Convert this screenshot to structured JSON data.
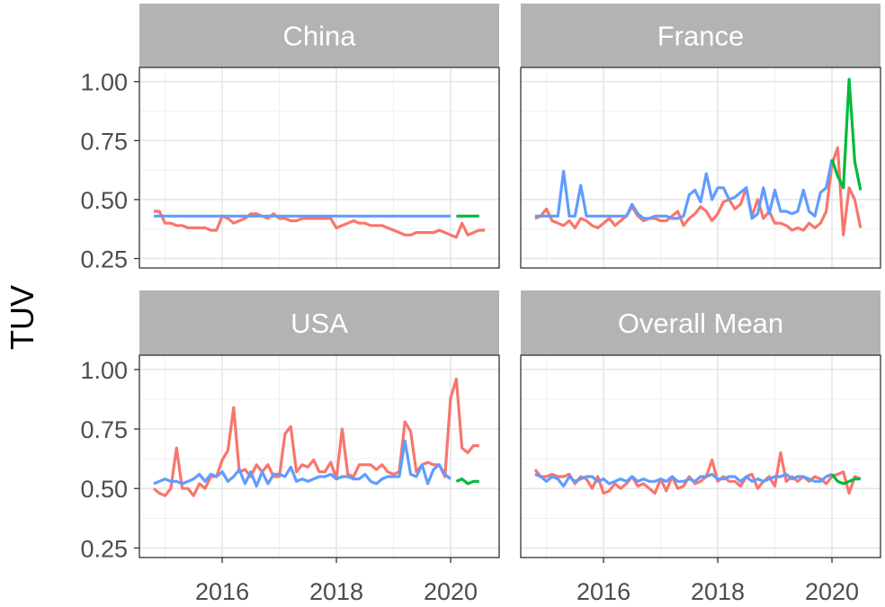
{
  "chart_data": {
    "type": "line",
    "facet_layout": "2x2",
    "ylabel": "TUV",
    "xlabel": "",
    "xlim": [
      2014.55,
      2020.85
    ],
    "ylim": [
      0.21,
      1.06
    ],
    "x_ticks": [
      2016,
      2018,
      2020
    ],
    "y_ticks": [
      0.25,
      0.5,
      0.75,
      1.0
    ],
    "x_tick_labels": [
      "2016",
      "2018",
      "2020"
    ],
    "y_tick_labels": [
      "0.25",
      "0.50",
      "0.75",
      "1.00"
    ],
    "grid": true,
    "legend": "none",
    "series_colors": {
      "red": "#F8766D",
      "blue": "#619CFF",
      "green": "#00BA38"
    },
    "panels": [
      {
        "title": "China",
        "series": [
          {
            "color": "red",
            "x": [
              2014.8,
              2014.9,
              2015.0,
              2015.1,
              2015.2,
              2015.3,
              2015.4,
              2015.5,
              2015.6,
              2015.7,
              2015.8,
              2015.9,
              2016.0,
              2016.1,
              2016.2,
              2016.3,
              2016.4,
              2016.5,
              2016.6,
              2016.7,
              2016.8,
              2016.9,
              2017.0,
              2017.1,
              2017.2,
              2017.3,
              2017.4,
              2017.5,
              2017.6,
              2017.7,
              2017.8,
              2017.9,
              2018.0,
              2018.1,
              2018.2,
              2018.3,
              2018.4,
              2018.5,
              2018.6,
              2018.7,
              2018.8,
              2018.9,
              2019.0,
              2019.1,
              2019.2,
              2019.3,
              2019.4,
              2019.5,
              2019.6,
              2019.7,
              2019.8,
              2019.9,
              2020.0,
              2020.1,
              2020.2,
              2020.3,
              2020.4,
              2020.5,
              2020.6
            ],
            "y": [
              0.45,
              0.45,
              0.4,
              0.4,
              0.39,
              0.39,
              0.38,
              0.38,
              0.38,
              0.38,
              0.37,
              0.37,
              0.43,
              0.42,
              0.4,
              0.41,
              0.42,
              0.44,
              0.44,
              0.43,
              0.42,
              0.44,
              0.42,
              0.42,
              0.41,
              0.41,
              0.42,
              0.42,
              0.42,
              0.42,
              0.42,
              0.42,
              0.38,
              0.39,
              0.4,
              0.41,
              0.4,
              0.4,
              0.39,
              0.39,
              0.39,
              0.38,
              0.37,
              0.36,
              0.35,
              0.35,
              0.36,
              0.36,
              0.36,
              0.36,
              0.37,
              0.36,
              0.35,
              0.34,
              0.4,
              0.35,
              0.36,
              0.37,
              0.37
            ]
          },
          {
            "color": "blue",
            "x": [
              2014.8,
              2020.0
            ],
            "y": [
              0.43,
              0.43
            ]
          },
          {
            "color": "green",
            "x": [
              2020.1,
              2020.5
            ],
            "y": [
              0.43,
              0.43
            ]
          }
        ]
      },
      {
        "title": "France",
        "series": [
          {
            "color": "red",
            "x": [
              2014.8,
              2014.9,
              2015.0,
              2015.1,
              2015.2,
              2015.3,
              2015.4,
              2015.5,
              2015.6,
              2015.7,
              2015.8,
              2015.9,
              2016.0,
              2016.1,
              2016.2,
              2016.3,
              2016.4,
              2016.5,
              2016.6,
              2016.7,
              2016.8,
              2016.9,
              2017.0,
              2017.1,
              2017.2,
              2017.3,
              2017.4,
              2017.5,
              2017.6,
              2017.7,
              2017.8,
              2017.9,
              2018.0,
              2018.1,
              2018.2,
              2018.3,
              2018.4,
              2018.5,
              2018.6,
              2018.7,
              2018.8,
              2018.9,
              2019.0,
              2019.1,
              2019.2,
              2019.3,
              2019.4,
              2019.5,
              2019.6,
              2019.7,
              2019.8,
              2019.9,
              2020.0,
              2020.1,
              2020.2,
              2020.3,
              2020.4,
              2020.5
            ],
            "y": [
              0.42,
              0.43,
              0.46,
              0.41,
              0.4,
              0.39,
              0.41,
              0.38,
              0.42,
              0.41,
              0.39,
              0.38,
              0.4,
              0.42,
              0.39,
              0.41,
              0.43,
              0.47,
              0.43,
              0.41,
              0.42,
              0.42,
              0.41,
              0.41,
              0.43,
              0.45,
              0.39,
              0.42,
              0.44,
              0.47,
              0.45,
              0.41,
              0.44,
              0.49,
              0.5,
              0.46,
              0.48,
              0.55,
              0.43,
              0.5,
              0.42,
              0.45,
              0.4,
              0.4,
              0.39,
              0.37,
              0.38,
              0.37,
              0.4,
              0.38,
              0.4,
              0.45,
              0.65,
              0.72,
              0.35,
              0.55,
              0.5,
              0.38
            ]
          },
          {
            "color": "blue",
            "x": [
              2014.8,
              2014.9,
              2015.0,
              2015.1,
              2015.2,
              2015.3,
              2015.4,
              2015.5,
              2015.6,
              2015.7,
              2015.8,
              2015.9,
              2016.0,
              2016.1,
              2016.2,
              2016.3,
              2016.4,
              2016.5,
              2016.6,
              2016.7,
              2016.8,
              2016.9,
              2017.0,
              2017.1,
              2017.2,
              2017.3,
              2017.4,
              2017.5,
              2017.6,
              2017.7,
              2017.8,
              2017.9,
              2018.0,
              2018.1,
              2018.2,
              2018.3,
              2018.4,
              2018.5,
              2018.6,
              2018.7,
              2018.8,
              2018.9,
              2019.0,
              2019.1,
              2019.2,
              2019.3,
              2019.4,
              2019.5,
              2019.6,
              2019.7,
              2019.8,
              2019.9,
              2020.0
            ],
            "y": [
              0.43,
              0.43,
              0.43,
              0.43,
              0.43,
              0.62,
              0.43,
              0.43,
              0.56,
              0.43,
              0.43,
              0.43,
              0.43,
              0.43,
              0.43,
              0.43,
              0.43,
              0.48,
              0.44,
              0.42,
              0.42,
              0.43,
              0.43,
              0.43,
              0.42,
              0.42,
              0.43,
              0.52,
              0.54,
              0.49,
              0.61,
              0.5,
              0.55,
              0.55,
              0.5,
              0.51,
              0.53,
              0.55,
              0.42,
              0.44,
              0.55,
              0.44,
              0.54,
              0.45,
              0.45,
              0.44,
              0.45,
              0.54,
              0.45,
              0.43,
              0.53,
              0.55,
              0.67
            ]
          },
          {
            "color": "green",
            "x": [
              2020.0,
              2020.1,
              2020.2,
              2020.3,
              2020.4,
              2020.5
            ],
            "y": [
              0.67,
              0.6,
              0.55,
              1.01,
              0.66,
              0.54
            ]
          }
        ]
      },
      {
        "title": "USA",
        "series": [
          {
            "color": "red",
            "x": [
              2014.8,
              2014.9,
              2015.0,
              2015.1,
              2015.2,
              2015.3,
              2015.4,
              2015.5,
              2015.6,
              2015.7,
              2015.8,
              2015.9,
              2016.0,
              2016.1,
              2016.2,
              2016.3,
              2016.4,
              2016.5,
              2016.6,
              2016.7,
              2016.8,
              2016.9,
              2017.0,
              2017.1,
              2017.2,
              2017.3,
              2017.4,
              2017.5,
              2017.6,
              2017.7,
              2017.8,
              2017.9,
              2018.0,
              2018.1,
              2018.2,
              2018.3,
              2018.4,
              2018.5,
              2018.6,
              2018.7,
              2018.8,
              2018.9,
              2019.0,
              2019.1,
              2019.2,
              2019.3,
              2019.4,
              2019.5,
              2019.6,
              2019.7,
              2019.8,
              2019.9,
              2020.0,
              2020.1,
              2020.2,
              2020.3,
              2020.4,
              2020.5
            ],
            "y": [
              0.5,
              0.48,
              0.47,
              0.5,
              0.67,
              0.5,
              0.5,
              0.47,
              0.52,
              0.5,
              0.55,
              0.55,
              0.62,
              0.66,
              0.84,
              0.57,
              0.58,
              0.55,
              0.6,
              0.57,
              0.6,
              0.55,
              0.55,
              0.73,
              0.76,
              0.57,
              0.6,
              0.59,
              0.62,
              0.57,
              0.57,
              0.61,
              0.54,
              0.75,
              0.56,
              0.55,
              0.6,
              0.6,
              0.6,
              0.58,
              0.6,
              0.57,
              0.56,
              0.57,
              0.78,
              0.74,
              0.57,
              0.6,
              0.61,
              0.6,
              0.6,
              0.55,
              0.88,
              0.96,
              0.67,
              0.65,
              0.68,
              0.68
            ]
          },
          {
            "color": "blue",
            "x": [
              2014.8,
              2014.9,
              2015.0,
              2015.1,
              2015.2,
              2015.3,
              2015.4,
              2015.5,
              2015.6,
              2015.7,
              2015.8,
              2015.9,
              2016.0,
              2016.1,
              2016.2,
              2016.3,
              2016.4,
              2016.5,
              2016.6,
              2016.7,
              2016.8,
              2016.9,
              2017.0,
              2017.1,
              2017.2,
              2017.3,
              2017.4,
              2017.5,
              2017.6,
              2017.7,
              2017.8,
              2017.9,
              2018.0,
              2018.1,
              2018.2,
              2018.3,
              2018.4,
              2018.5,
              2018.6,
              2018.7,
              2018.8,
              2018.9,
              2019.0,
              2019.1,
              2019.2,
              2019.3,
              2019.4,
              2019.5,
              2019.6,
              2019.7,
              2019.8,
              2019.9,
              2020.0
            ],
            "y": [
              0.52,
              0.53,
              0.54,
              0.53,
              0.53,
              0.52,
              0.53,
              0.54,
              0.56,
              0.53,
              0.56,
              0.55,
              0.57,
              0.53,
              0.55,
              0.58,
              0.52,
              0.57,
              0.51,
              0.57,
              0.52,
              0.56,
              0.56,
              0.55,
              0.59,
              0.53,
              0.54,
              0.53,
              0.54,
              0.55,
              0.55,
              0.56,
              0.54,
              0.55,
              0.55,
              0.54,
              0.54,
              0.56,
              0.53,
              0.52,
              0.54,
              0.55,
              0.55,
              0.55,
              0.7,
              0.56,
              0.55,
              0.6,
              0.52,
              0.58,
              0.6,
              0.56,
              0.54
            ]
          },
          {
            "color": "green",
            "x": [
              2020.1,
              2020.2,
              2020.3,
              2020.4,
              2020.5
            ],
            "y": [
              0.53,
              0.54,
              0.52,
              0.53,
              0.53
            ]
          }
        ]
      },
      {
        "title": "Overall Mean",
        "series": [
          {
            "color": "red",
            "x": [
              2014.8,
              2014.9,
              2015.0,
              2015.1,
              2015.2,
              2015.3,
              2015.4,
              2015.5,
              2015.6,
              2015.7,
              2015.8,
              2015.9,
              2016.0,
              2016.1,
              2016.2,
              2016.3,
              2016.4,
              2016.5,
              2016.6,
              2016.7,
              2016.8,
              2016.9,
              2017.0,
              2017.1,
              2017.2,
              2017.3,
              2017.4,
              2017.5,
              2017.6,
              2017.7,
              2017.8,
              2017.9,
              2018.0,
              2018.1,
              2018.2,
              2018.3,
              2018.4,
              2018.5,
              2018.6,
              2018.7,
              2018.8,
              2018.9,
              2019.0,
              2019.1,
              2019.2,
              2019.3,
              2019.4,
              2019.5,
              2019.6,
              2019.7,
              2019.8,
              2019.9,
              2020.0,
              2020.1,
              2020.2,
              2020.3,
              2020.4,
              2020.5
            ],
            "y": [
              0.58,
              0.55,
              0.55,
              0.56,
              0.55,
              0.55,
              0.56,
              0.52,
              0.55,
              0.54,
              0.5,
              0.55,
              0.48,
              0.49,
              0.52,
              0.5,
              0.52,
              0.55,
              0.51,
              0.52,
              0.5,
              0.48,
              0.54,
              0.49,
              0.55,
              0.5,
              0.51,
              0.55,
              0.52,
              0.53,
              0.55,
              0.62,
              0.53,
              0.55,
              0.53,
              0.53,
              0.51,
              0.55,
              0.56,
              0.5,
              0.53,
              0.55,
              0.51,
              0.65,
              0.53,
              0.55,
              0.53,
              0.55,
              0.53,
              0.55,
              0.54,
              0.52,
              0.55,
              0.56,
              0.57,
              0.48,
              0.55,
              0.54
            ]
          },
          {
            "color": "blue",
            "x": [
              2014.8,
              2014.9,
              2015.0,
              2015.1,
              2015.2,
              2015.3,
              2015.4,
              2015.5,
              2015.6,
              2015.7,
              2015.8,
              2015.9,
              2016.0,
              2016.1,
              2016.2,
              2016.3,
              2016.4,
              2016.5,
              2016.6,
              2016.7,
              2016.8,
              2016.9,
              2017.0,
              2017.1,
              2017.2,
              2017.3,
              2017.4,
              2017.5,
              2017.6,
              2017.7,
              2017.8,
              2017.9,
              2018.0,
              2018.1,
              2018.2,
              2018.3,
              2018.4,
              2018.5,
              2018.6,
              2018.7,
              2018.8,
              2018.9,
              2019.0,
              2019.1,
              2019.2,
              2019.3,
              2019.4,
              2019.5,
              2019.6,
              2019.7,
              2019.8,
              2019.9,
              2020.0
            ],
            "y": [
              0.56,
              0.55,
              0.53,
              0.55,
              0.54,
              0.51,
              0.55,
              0.53,
              0.54,
              0.55,
              0.55,
              0.53,
              0.54,
              0.52,
              0.53,
              0.54,
              0.53,
              0.55,
              0.53,
              0.54,
              0.53,
              0.53,
              0.54,
              0.53,
              0.55,
              0.53,
              0.53,
              0.54,
              0.53,
              0.55,
              0.55,
              0.56,
              0.54,
              0.54,
              0.55,
              0.55,
              0.53,
              0.55,
              0.53,
              0.54,
              0.53,
              0.54,
              0.55,
              0.55,
              0.56,
              0.54,
              0.55,
              0.55,
              0.54,
              0.53,
              0.53,
              0.55,
              0.56
            ]
          },
          {
            "color": "green",
            "x": [
              2020.0,
              2020.1,
              2020.2,
              2020.3,
              2020.4,
              2020.5
            ],
            "y": [
              0.56,
              0.53,
              0.52,
              0.53,
              0.54,
              0.54
            ]
          }
        ]
      }
    ]
  }
}
